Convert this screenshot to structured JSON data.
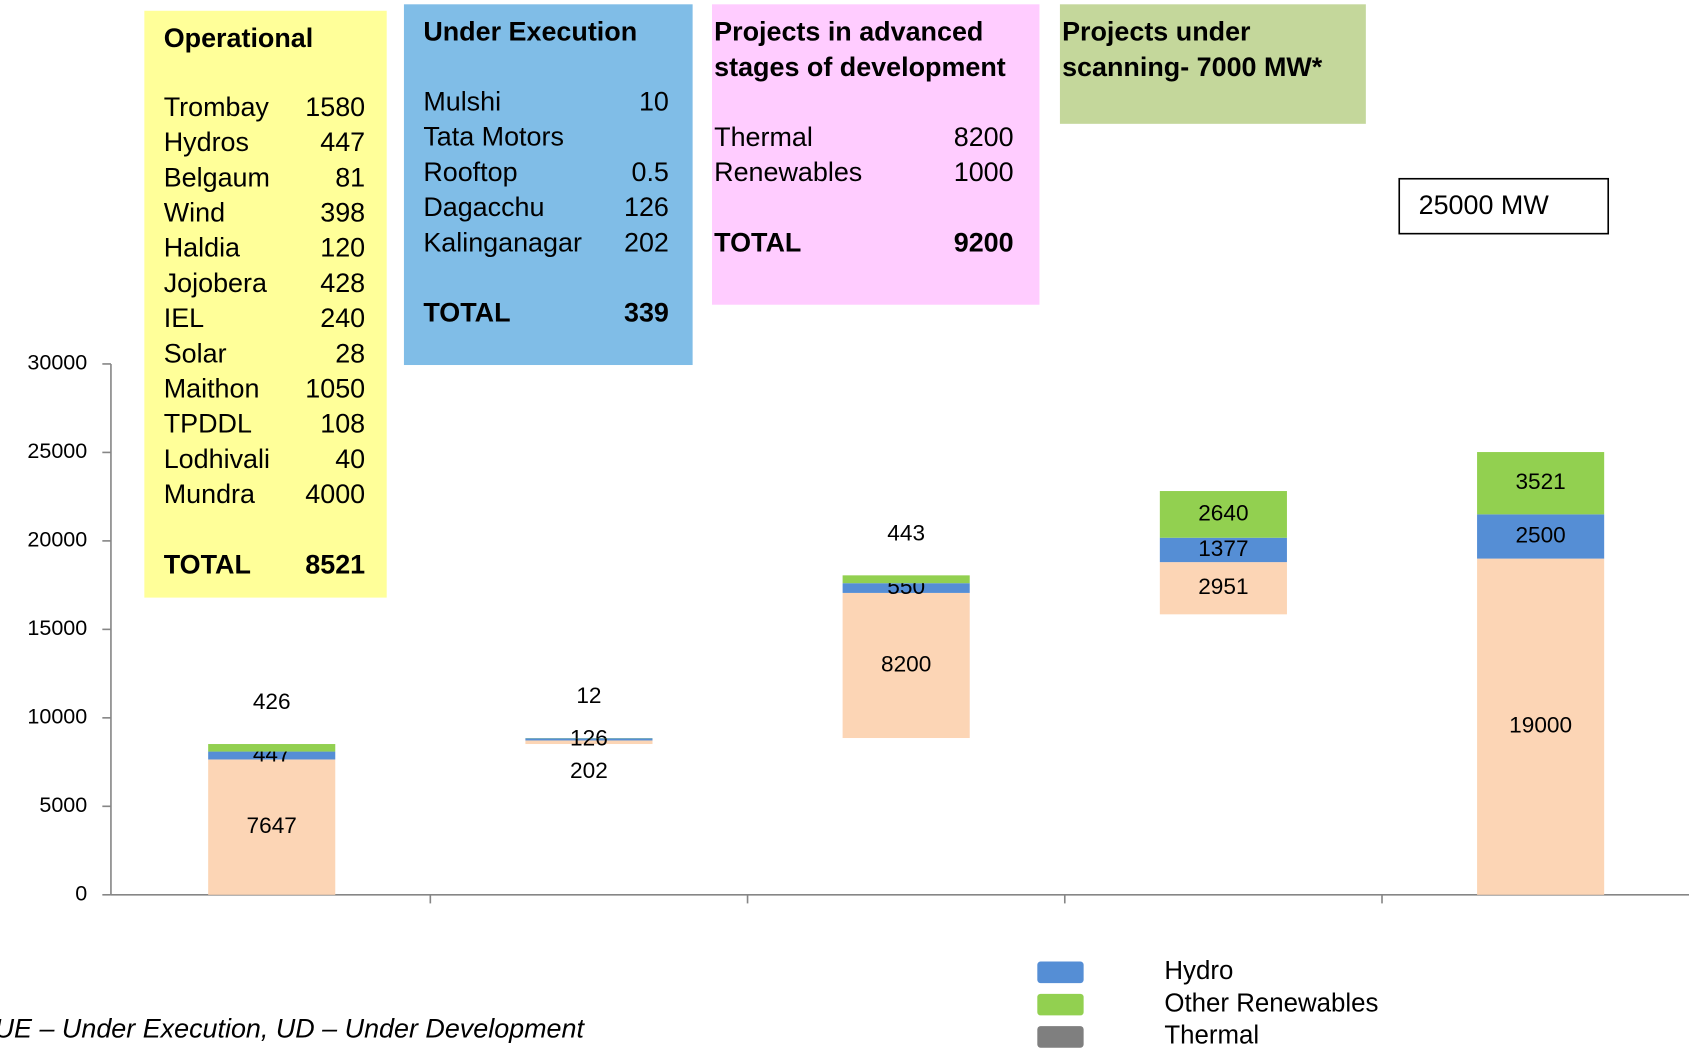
{
  "chart_data": {
    "type": "waterfall",
    "categories": [
      null,
      null,
      null,
      null,
      null
    ],
    "series": [
      {
        "color": "none",
        "values": [
          0,
          8520,
          8860,
          15850,
          0
        ]
      },
      {
        "color": "#fcd5b5",
        "values": [
          7647,
          202,
          8200,
          2951,
          19000
        ]
      },
      {
        "color": "#558ed5",
        "values": [
          447,
          126,
          550,
          1377,
          2500
        ]
      },
      {
        "color": "#92d050",
        "values": [
          426,
          12,
          443,
          2640,
          3521
        ]
      }
    ],
    "legend": [
      {
        "name": "Hydro",
        "color": "#558ed5"
      },
      {
        "name": "Other Renewables",
        "color": "#92d050"
      },
      {
        "name": "Thermal",
        "color": "#7f7f7f"
      }
    ],
    "ylim": [
      0,
      30000
    ],
    "yticks": [
      0,
      5000,
      10000,
      15000,
      20000,
      25000,
      30000
    ],
    "panels": [
      {
        "color": "#ffff99",
        "title": [
          "Operational"
        ],
        "rows": [
          [
            "Trombay",
            1580
          ],
          [
            "Hydros",
            447
          ],
          [
            "Belgaum",
            81
          ],
          [
            "Wind",
            398
          ],
          [
            "Haldia",
            120
          ],
          [
            "Jojobera",
            428
          ],
          [
            "IEL",
            240
          ],
          [
            "Solar",
            28
          ],
          [
            "Maithon",
            1050
          ],
          [
            "TPDDL",
            108
          ],
          [
            "Lodhivali",
            40
          ],
          [
            "Mundra",
            4000
          ]
        ],
        "total": [
          "TOTAL",
          8521
        ]
      },
      {
        "color": "#80bde7",
        "title": [
          "Under Execution"
        ],
        "rows": [
          [
            "Mulshi",
            10
          ],
          [
            "Tata Motors"
          ],
          [
            "Rooftop",
            0.5
          ],
          [
            "Dagacchu",
            126
          ],
          [
            "Kalinganagar",
            202
          ]
        ],
        "total": [
          "TOTAL",
          339
        ]
      },
      {
        "color": "#ffccff",
        "title": [
          "Projects in advanced",
          "stages of development"
        ],
        "rows": [
          [
            "Thermal",
            8200
          ],
          [
            "Renewables",
            1000
          ]
        ],
        "total": [
          "TOTAL",
          9200
        ]
      },
      {
        "color": "#c4d79b",
        "title": [
          "Projects under",
          "scanning-   7000 MW*"
        ],
        "rows": []
      }
    ],
    "annotation": "25000 MW",
    "footnote": "UE – Under Execution, UD – Under Development"
  }
}
